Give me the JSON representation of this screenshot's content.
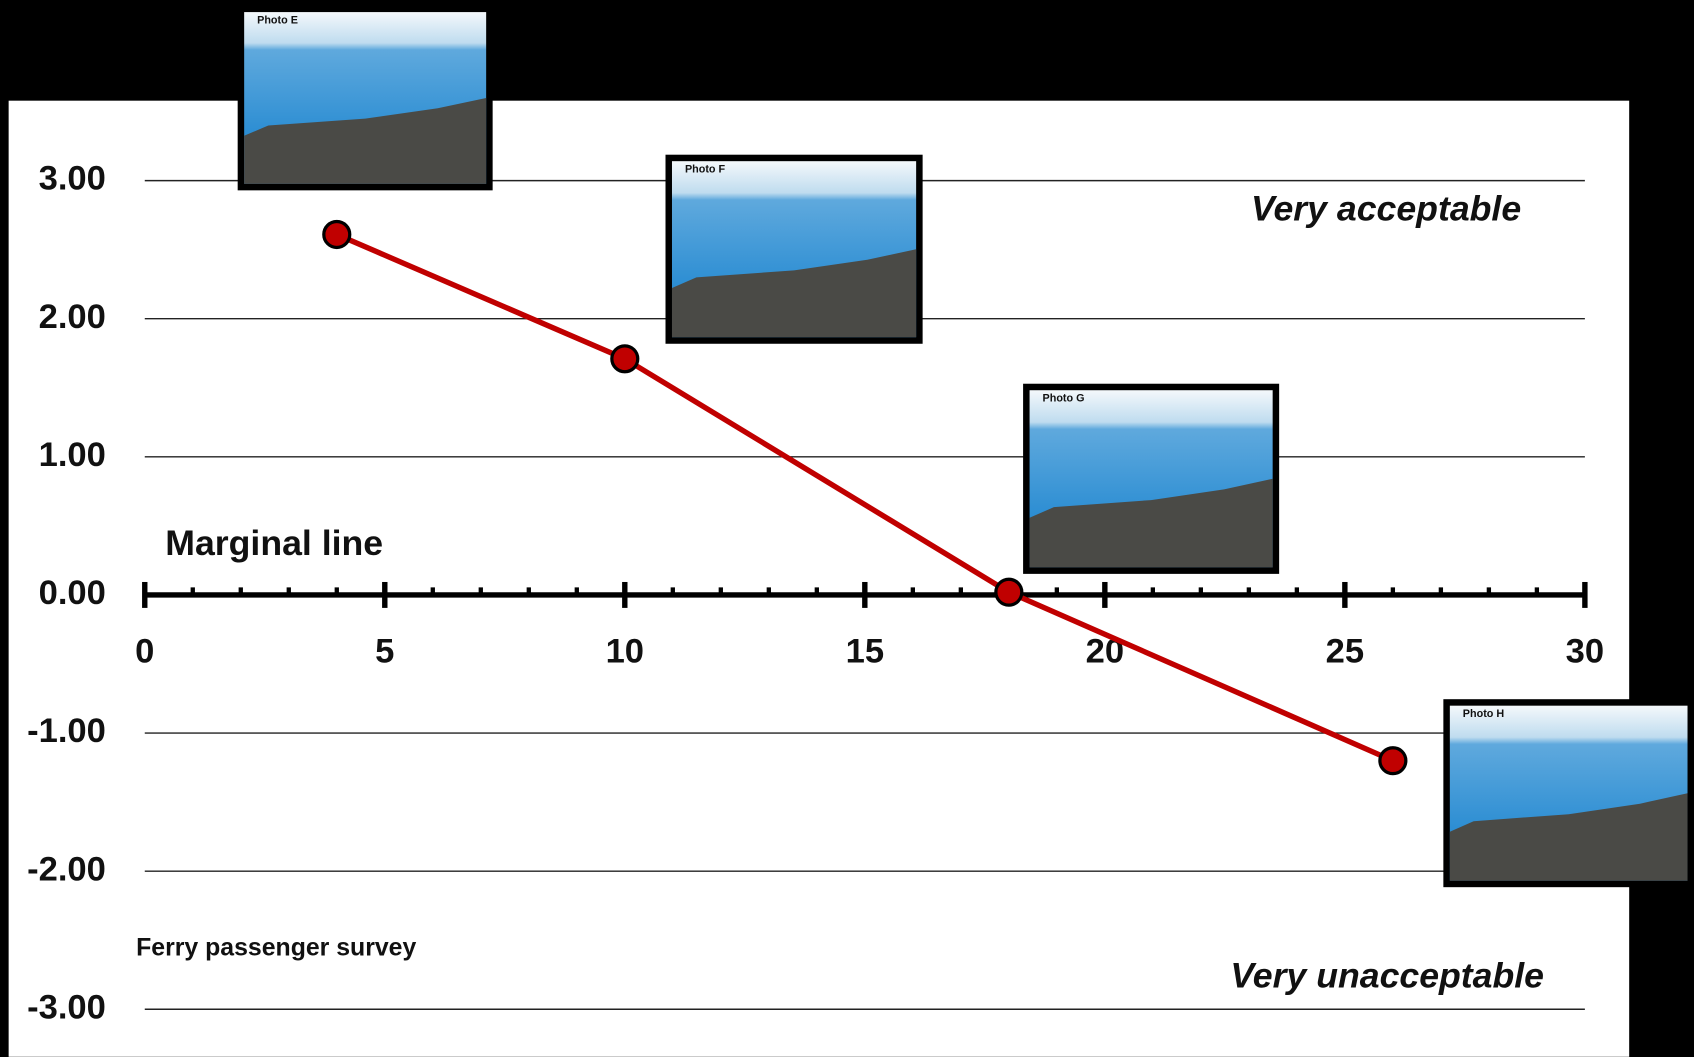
{
  "chart_data": {
    "type": "line",
    "x": [
      4,
      10,
      18,
      26
    ],
    "series": [
      {
        "color": "#c00000",
        "values": [
          2.61,
          1.71,
          0.02,
          -1.2
        ]
      }
    ],
    "xlim": [
      0,
      30
    ],
    "xticks": [
      0,
      5,
      10,
      15,
      20,
      25,
      30
    ],
    "xminorticks": [
      1,
      2,
      3,
      4,
      6,
      7,
      8,
      9,
      11,
      12,
      13,
      14,
      16,
      17,
      18,
      19,
      21,
      22,
      23,
      24,
      26,
      27,
      28,
      29
    ],
    "ylim": [
      -3,
      3
    ],
    "yticks": [
      {
        "value": -3,
        "label": "-3.00"
      },
      {
        "value": -2,
        "label": "-2.00"
      },
      {
        "value": -1,
        "label": "-1.00"
      },
      {
        "value": 0,
        "label": "0.00"
      },
      {
        "value": 1,
        "label": "1.00"
      },
      {
        "value": 2,
        "label": "2.00"
      },
      {
        "value": 3,
        "label": "3.00"
      }
    ],
    "grid": true,
    "annotations": [
      "Very acceptable",
      "Very unacceptable",
      "Marginal line",
      "Ferry passenger survey"
    ],
    "photos": [
      {
        "label": "Photo E"
      },
      {
        "label": "Photo F"
      },
      {
        "label": "Photo G"
      },
      {
        "label": "Photo H"
      }
    ]
  }
}
